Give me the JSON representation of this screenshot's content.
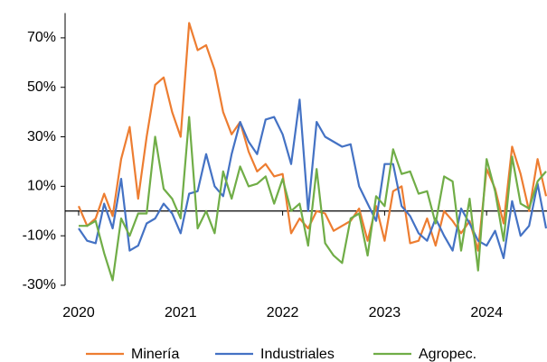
{
  "chart_data": {
    "type": "line",
    "categories": [
      "2020",
      null,
      null,
      null,
      null,
      null,
      null,
      null,
      null,
      null,
      null,
      null,
      "2021",
      null,
      null,
      null,
      null,
      null,
      null,
      null,
      null,
      null,
      null,
      null,
      "2022",
      null,
      null,
      null,
      null,
      null,
      null,
      null,
      null,
      null,
      null,
      null,
      "2023",
      null,
      null,
      null,
      null,
      null,
      null,
      null,
      null,
      null,
      null,
      null,
      "2024",
      null,
      null,
      null,
      null,
      null,
      null,
      null
    ],
    "series": [
      {
        "name": "Minería",
        "color": "#ED7D31",
        "values": [
          2,
          -6,
          -3,
          7,
          -2,
          21,
          34,
          5,
          30,
          51,
          54,
          40,
          30,
          76,
          65,
          67,
          57,
          40,
          31,
          36,
          24,
          16,
          19,
          14,
          15,
          -9,
          -3,
          -7,
          0,
          -1,
          -8,
          -6,
          -4,
          1,
          -12,
          2,
          -12,
          8,
          10,
          -13,
          -12,
          -3,
          -14,
          0,
          -4,
          -9,
          -4,
          -16,
          17,
          9,
          -5,
          26,
          15,
          0,
          21,
          6
        ]
      },
      {
        "name": "Industriales",
        "color": "#4472C4",
        "values": [
          -7,
          -12,
          -13,
          3,
          -7,
          13,
          -16,
          -14,
          -5,
          -3,
          3,
          -1,
          -9,
          7,
          8,
          23,
          10,
          6,
          23,
          36,
          28,
          23,
          37,
          38,
          31,
          19,
          45,
          0,
          36,
          30,
          28,
          26,
          27,
          10,
          3,
          -4,
          19,
          19,
          2,
          -2,
          -9,
          -12,
          -3,
          -10,
          -16,
          1,
          -5,
          -12,
          -14,
          -8,
          -19,
          4,
          -10,
          -6,
          11,
          -7
        ]
      },
      {
        "name": "Agropec.",
        "color": "#70AD47",
        "values": [
          -6,
          -6,
          -4,
          -17,
          -28,
          -3,
          -10,
          -1,
          -1,
          30,
          9,
          5,
          -3,
          38,
          -7,
          0,
          -9,
          16,
          5,
          18,
          10,
          11,
          14,
          3,
          13,
          0,
          3,
          -14,
          17,
          -13,
          -18,
          -21,
          -3,
          -1,
          -18,
          6,
          2,
          25,
          15,
          16,
          7,
          8,
          -5,
          14,
          12,
          -16,
          5,
          -24,
          21,
          8,
          -12,
          22,
          3,
          1,
          12,
          16
        ]
      }
    ],
    "ylim": [
      -30,
      80
    ],
    "yticks": [
      {
        "value": -30,
        "label": "-30%"
      },
      {
        "value": -10,
        "label": "-10%"
      },
      {
        "value": 10,
        "label": "10%"
      },
      {
        "value": 30,
        "label": "30%"
      },
      {
        "value": 50,
        "label": "50%"
      },
      {
        "value": 70,
        "label": "70%"
      }
    ],
    "legend": "bottom"
  }
}
